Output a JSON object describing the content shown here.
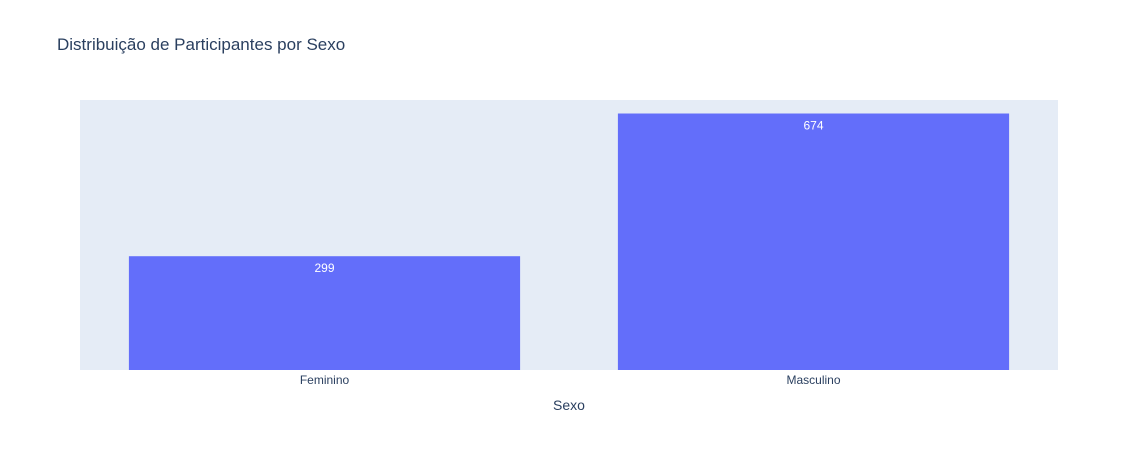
{
  "chart_data": {
    "type": "bar",
    "title": "Distribuição de Participantes por Sexo",
    "xlabel": "Sexo",
    "ylabel": "",
    "categories": [
      "Feminino",
      "Masculino"
    ],
    "values": [
      299,
      674
    ],
    "data_labels": [
      "299",
      "674"
    ],
    "ylim": [
      0,
      709.5
    ],
    "y_axis_visible": false,
    "grid": false,
    "legend": "none",
    "colors": {
      "bar": "#636efa",
      "plot_background": "#e5ecf6",
      "paper_background": "#ffffff",
      "text": "#2a3f5f",
      "data_label_text": "#ffffff"
    }
  }
}
